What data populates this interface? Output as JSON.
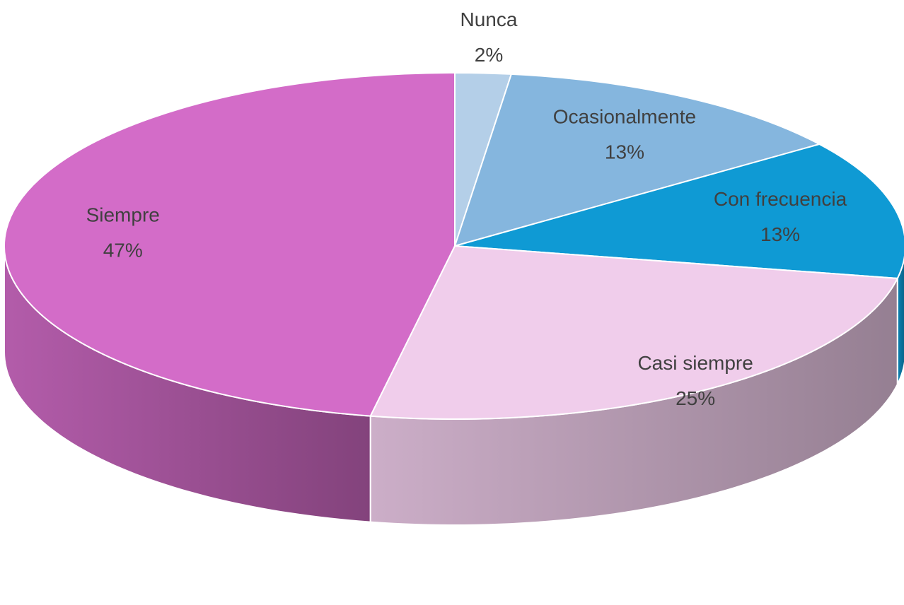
{
  "chart_data": {
    "type": "pie",
    "categories": [
      "Nunca",
      "Ocasionalmente",
      "Con frecuencia",
      "Casi siempre",
      "Siempre"
    ],
    "values": [
      2,
      13,
      13,
      25,
      47
    ],
    "value_labels": [
      "2%",
      "13%",
      "13%",
      "25%",
      "47%"
    ],
    "colors": [
      "#b4cfe8",
      "#85b6de",
      "#0f9ad4",
      "#f0cdeb",
      "#d36cc8"
    ],
    "three_d": true
  }
}
